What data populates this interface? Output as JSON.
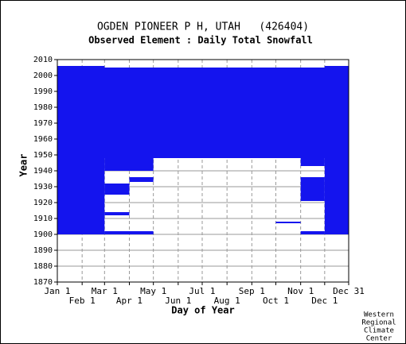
{
  "chart_data": {
    "type": "timeline",
    "title": "OGDEN PIONEER P H, UTAH   (426404)",
    "subtitle": "Observed Element : Daily Total Snowfall",
    "x_label": "Day of Year",
    "y_label": "Year",
    "credit": [
      "Western",
      "Regional",
      "Climate",
      "Center"
    ],
    "color": "#1414ee",
    "grid": true,
    "xlim": [
      1,
      365
    ],
    "ylim": [
      1870,
      2010
    ],
    "xticks": [
      {
        "value": 1,
        "label": "Jan 1"
      },
      {
        "value": 32,
        "label": "Feb 1"
      },
      {
        "value": 60,
        "label": "Mar 1"
      },
      {
        "value": 91,
        "label": "Apr 1"
      },
      {
        "value": 121,
        "label": "May 1"
      },
      {
        "value": 152,
        "label": "Jun 1"
      },
      {
        "value": 182,
        "label": "Jul 1"
      },
      {
        "value": 213,
        "label": "Aug 1"
      },
      {
        "value": 244,
        "label": "Sep 1"
      },
      {
        "value": 274,
        "label": "Oct 1"
      },
      {
        "value": 305,
        "label": "Nov 1"
      },
      {
        "value": 335,
        "label": "Dec 1"
      },
      {
        "value": 365,
        "label": "Dec 31"
      }
    ],
    "yticks": [
      1870,
      1880,
      1890,
      1900,
      1910,
      1920,
      1930,
      1940,
      1950,
      1960,
      1970,
      1980,
      1990,
      2000,
      2010
    ],
    "blocks": [
      {
        "day": [
          1,
          365
        ],
        "year": [
          1948,
          2005
        ]
      },
      {
        "day": [
          1,
          60
        ],
        "year": [
          2005,
          2006
        ]
      },
      {
        "day": [
          335,
          365
        ],
        "year": [
          2005,
          2006
        ]
      },
      {
        "day": [
          1,
          60
        ],
        "year": [
          1900,
          1948
        ]
      },
      {
        "day": [
          60,
          91
        ],
        "year": [
          1940,
          1948
        ]
      },
      {
        "day": [
          60,
          91
        ],
        "year": [
          1925,
          1932
        ]
      },
      {
        "day": [
          60,
          91
        ],
        "year": [
          1912,
          1914
        ]
      },
      {
        "day": [
          60,
          91
        ],
        "year": [
          1900,
          1902
        ]
      },
      {
        "day": [
          91,
          121
        ],
        "year": [
          1940,
          1948
        ]
      },
      {
        "day": [
          91,
          121
        ],
        "year": [
          1933,
          1936
        ]
      },
      {
        "day": [
          91,
          121
        ],
        "year": [
          1900,
          1902
        ]
      },
      {
        "day": [
          305,
          335
        ],
        "year": [
          1943,
          1948
        ]
      },
      {
        "day": [
          305,
          335
        ],
        "year": [
          1921,
          1936
        ]
      },
      {
        "day": [
          305,
          335
        ],
        "year": [
          1900,
          1902
        ]
      },
      {
        "day": [
          274,
          305
        ],
        "year": [
          1907,
          1908
        ]
      },
      {
        "day": [
          335,
          365
        ],
        "year": [
          1900,
          1948
        ]
      }
    ]
  }
}
